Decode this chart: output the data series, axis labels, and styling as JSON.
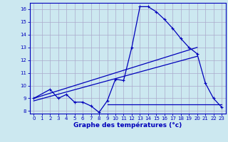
{
  "xlabel": "Graphe des températures (°c)",
  "background_color": "#cce8f0",
  "grid_color": "#aaaacc",
  "line_color": "#0000bb",
  "xlim": [
    -0.5,
    23.5
  ],
  "ylim": [
    7.8,
    16.5
  ],
  "yticks": [
    8,
    9,
    10,
    11,
    12,
    13,
    14,
    15,
    16
  ],
  "xticks": [
    0,
    1,
    2,
    3,
    4,
    5,
    6,
    7,
    8,
    9,
    10,
    11,
    12,
    13,
    14,
    15,
    16,
    17,
    18,
    19,
    20,
    21,
    22,
    23
  ],
  "line1_x": [
    0,
    2,
    3,
    4,
    5,
    6,
    7,
    8,
    9,
    10,
    11,
    12,
    13,
    14,
    15,
    16,
    17,
    18,
    19,
    20,
    21,
    22,
    23
  ],
  "line1_y": [
    9.0,
    9.7,
    9.0,
    9.3,
    8.7,
    8.7,
    8.4,
    7.9,
    8.8,
    10.5,
    10.4,
    13.0,
    16.2,
    16.2,
    15.8,
    15.2,
    14.5,
    13.7,
    13.0,
    12.5,
    10.2,
    9.0,
    8.3
  ],
  "line2_x": [
    0,
    20
  ],
  "line2_y": [
    9.0,
    13.0
  ],
  "line3_x": [
    0,
    20
  ],
  "line3_y": [
    8.8,
    12.3
  ],
  "line4_x": [
    9,
    23
  ],
  "line4_y": [
    8.5,
    8.5
  ],
  "marker": "+"
}
